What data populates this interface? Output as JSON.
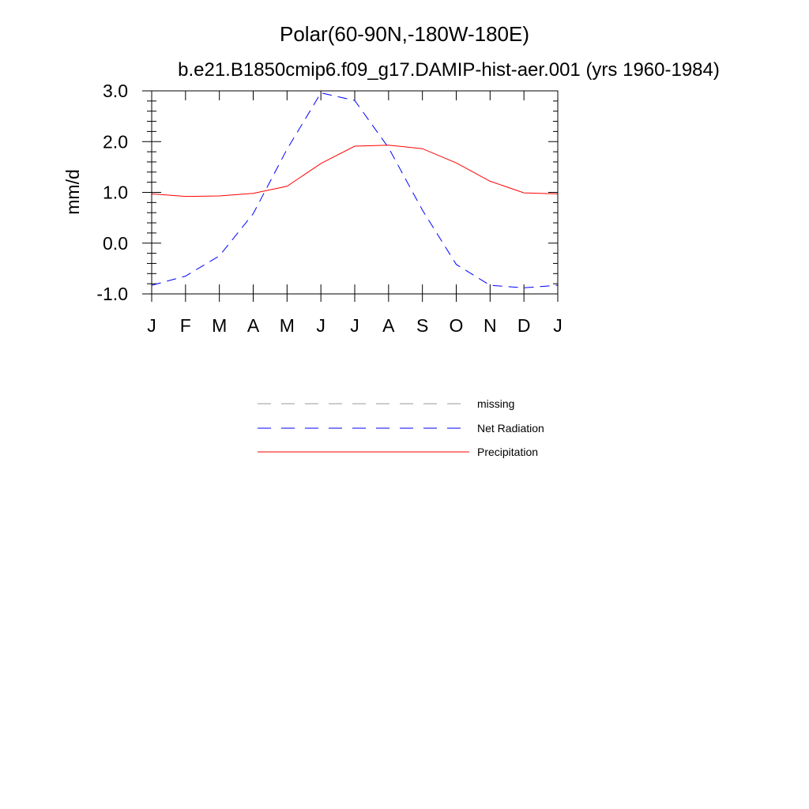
{
  "chart_data": {
    "type": "line",
    "title": "Polar(60-90N,-180W-180E)",
    "subtitle": "b.e21.B1850cmip6.f09_g17.DAMIP-hist-aer.001 (yrs 1960-1984)",
    "xlabel": "",
    "ylabel": "mm/d",
    "categories": [
      "J",
      "F",
      "M",
      "A",
      "M",
      "J",
      "J",
      "A",
      "S",
      "O",
      "N",
      "D",
      "J"
    ],
    "ylim": [
      -1.0,
      3.0
    ],
    "yticks": [
      -1.0,
      0.0,
      1.0,
      2.0,
      3.0
    ],
    "ytick_labels": [
      "-1.0",
      "0.0",
      "1.0",
      "2.0",
      "3.0"
    ],
    "grid": false,
    "legend_position": "bottom-center",
    "legend": [
      {
        "name": "missing",
        "color": "#999999",
        "dash": "dashed"
      },
      {
        "name": "Net Radiation",
        "color": "#0000ff",
        "dash": "dashed"
      },
      {
        "name": "Precipitation",
        "color": "#ff0000",
        "dash": "solid"
      }
    ],
    "series": [
      {
        "name": "Net Radiation",
        "color": "#0000ff",
        "dash": "dashed",
        "values": [
          -0.83,
          -0.65,
          -0.25,
          0.58,
          1.85,
          2.96,
          2.81,
          1.88,
          0.65,
          -0.42,
          -0.83,
          -0.88,
          -0.83
        ]
      },
      {
        "name": "Precipitation",
        "color": "#ff0000",
        "dash": "solid",
        "values": [
          0.97,
          0.92,
          0.93,
          0.98,
          1.12,
          1.57,
          1.91,
          1.93,
          1.86,
          1.58,
          1.22,
          0.99,
          0.97
        ]
      }
    ]
  }
}
